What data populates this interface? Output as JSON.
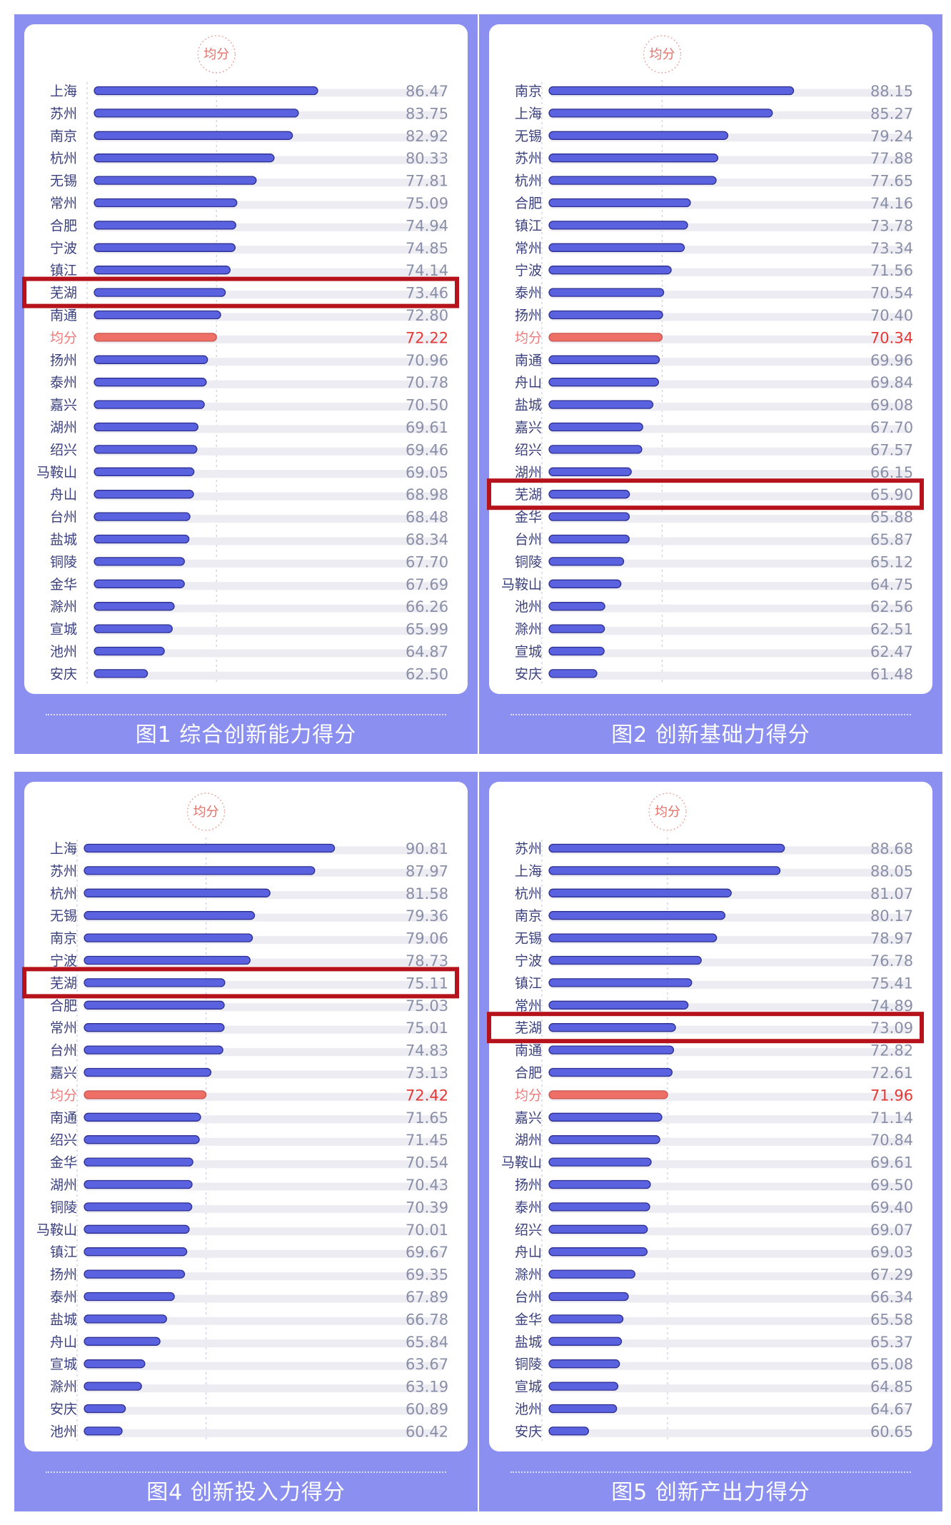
{
  "avg_label": "均分",
  "chart_data": [
    {
      "type": "bar",
      "title": "图1 综合创新能力得分",
      "highlight": "芜湖",
      "average_label": "均分",
      "categories": [
        "上海",
        "苏州",
        "南京",
        "杭州",
        "无锡",
        "常州",
        "合肥",
        "宁波",
        "镇江",
        "芜湖",
        "南通",
        "均分",
        "扬州",
        "泰州",
        "嘉兴",
        "湖州",
        "绍兴",
        "马鞍山",
        "舟山",
        "台州",
        "盐城",
        "铜陵",
        "金华",
        "滁州",
        "宣城",
        "池州",
        "安庆"
      ],
      "values": [
        86.47,
        83.75,
        82.92,
        80.33,
        77.81,
        75.09,
        74.94,
        74.85,
        74.14,
        73.46,
        72.8,
        72.22,
        70.96,
        70.78,
        70.5,
        69.61,
        69.46,
        69.05,
        68.98,
        68.48,
        68.34,
        67.7,
        67.69,
        66.26,
        65.99,
        64.87,
        62.5
      ],
      "value_labels": [
        "86.47",
        "83.75",
        "82.92",
        "80.33",
        "77.81",
        "75.09",
        "74.94",
        "74.85",
        "74.14",
        "73.46",
        "72.80",
        "72.22",
        "70.96",
        "70.78",
        "70.50",
        "69.61",
        "69.46",
        "69.05",
        "68.98",
        "68.48",
        "68.34",
        "67.70",
        "67.69",
        "66.26",
        "65.99",
        "64.87",
        "62.50"
      ],
      "colors": {
        "bar": "#5b62e0",
        "average": "#ee6f66",
        "highlight_box": "#b5121b"
      }
    },
    {
      "type": "bar",
      "title": "图2 创新基础力得分",
      "highlight": "芜湖",
      "average_label": "均分",
      "categories": [
        "南京",
        "上海",
        "无锡",
        "苏州",
        "杭州",
        "合肥",
        "镇江",
        "常州",
        "宁波",
        "泰州",
        "扬州",
        "均分",
        "南通",
        "舟山",
        "盐城",
        "嘉兴",
        "绍兴",
        "湖州",
        "芜湖",
        "金华",
        "台州",
        "铜陵",
        "马鞍山",
        "池州",
        "滁州",
        "宣城",
        "安庆"
      ],
      "values": [
        88.15,
        85.27,
        79.24,
        77.88,
        77.65,
        74.16,
        73.78,
        73.34,
        71.56,
        70.54,
        70.4,
        70.34,
        69.96,
        69.84,
        69.08,
        67.7,
        67.57,
        66.15,
        65.9,
        65.88,
        65.87,
        65.12,
        64.75,
        62.56,
        62.51,
        62.47,
        61.48
      ],
      "value_labels": [
        "88.15",
        "85.27",
        "79.24",
        "77.88",
        "77.65",
        "74.16",
        "73.78",
        "73.34",
        "71.56",
        "70.54",
        "70.40",
        "70.34",
        "69.96",
        "69.84",
        "69.08",
        "67.70",
        "67.57",
        "66.15",
        "65.90",
        "65.88",
        "65.87",
        "65.12",
        "64.75",
        "62.56",
        "62.51",
        "62.47",
        "61.48"
      ],
      "colors": {
        "bar": "#5b62e0",
        "average": "#ee6f66",
        "highlight_box": "#b5121b"
      }
    },
    {
      "type": "bar",
      "title": "图4 创新投入力得分",
      "highlight": "芜湖",
      "average_label": "均分",
      "categories": [
        "上海",
        "苏州",
        "杭州",
        "无锡",
        "南京",
        "宁波",
        "芜湖",
        "合肥",
        "常州",
        "台州",
        "嘉兴",
        "均分",
        "南通",
        "绍兴",
        "金华",
        "湖州",
        "铜陵",
        "马鞍山",
        "镇江",
        "扬州",
        "泰州",
        "盐城",
        "舟山",
        "宣城",
        "滁州",
        "安庆",
        "池州"
      ],
      "values": [
        90.81,
        87.97,
        81.58,
        79.36,
        79.06,
        78.73,
        75.11,
        75.03,
        75.01,
        74.83,
        73.13,
        72.42,
        71.65,
        71.45,
        70.54,
        70.43,
        70.39,
        70.01,
        69.67,
        69.35,
        67.89,
        66.78,
        65.84,
        63.67,
        63.19,
        60.89,
        60.42
      ],
      "value_labels": [
        "90.81",
        "87.97",
        "81.58",
        "79.36",
        "79.06",
        "78.73",
        "75.11",
        "75.03",
        "75.01",
        "74.83",
        "73.13",
        "72.42",
        "71.65",
        "71.45",
        "70.54",
        "70.43",
        "70.39",
        "70.01",
        "69.67",
        "69.35",
        "67.89",
        "66.78",
        "65.84",
        "63.67",
        "63.19",
        "60.89",
        "60.42"
      ],
      "colors": {
        "bar": "#5b62e0",
        "average": "#ee6f66",
        "highlight_box": "#b5121b"
      }
    },
    {
      "type": "bar",
      "title": "图5 创新产出力得分",
      "highlight": "芜湖",
      "average_label": "均分",
      "categories": [
        "苏州",
        "上海",
        "杭州",
        "南京",
        "无锡",
        "宁波",
        "镇江",
        "常州",
        "芜湖",
        "南通",
        "合肥",
        "均分",
        "嘉兴",
        "湖州",
        "马鞍山",
        "扬州",
        "泰州",
        "绍兴",
        "舟山",
        "滁州",
        "台州",
        "金华",
        "盐城",
        "铜陵",
        "宣城",
        "池州",
        "安庆"
      ],
      "values": [
        88.68,
        88.05,
        81.07,
        80.17,
        78.97,
        76.78,
        75.41,
        74.89,
        73.09,
        72.82,
        72.61,
        71.96,
        71.14,
        70.84,
        69.61,
        69.5,
        69.4,
        69.07,
        69.03,
        67.29,
        66.34,
        65.58,
        65.37,
        65.08,
        64.85,
        64.67,
        60.65
      ],
      "value_labels": [
        "88.68",
        "88.05",
        "81.07",
        "80.17",
        "78.97",
        "76.78",
        "75.41",
        "74.89",
        "73.09",
        "72.82",
        "72.61",
        "71.96",
        "71.14",
        "70.84",
        "69.61",
        "69.50",
        "69.40",
        "69.07",
        "69.03",
        "67.29",
        "66.34",
        "65.58",
        "65.37",
        "65.08",
        "64.85",
        "64.67",
        "60.65"
      ],
      "colors": {
        "bar": "#5b62e0",
        "average": "#ee6f66",
        "highlight_box": "#b5121b"
      }
    }
  ]
}
